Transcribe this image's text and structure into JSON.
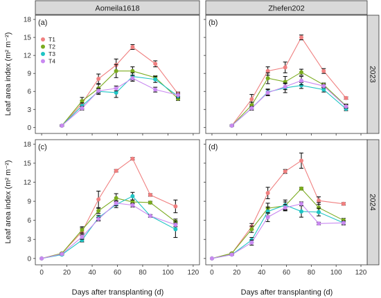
{
  "figure": {
    "x_label": "Days after transplanting (d)",
    "y_label": "Leaf area index (m² m⁻²)",
    "col_strips": [
      "Aomeila1618",
      "Zhefen202"
    ],
    "row_strips": [
      "2023",
      "2024"
    ]
  },
  "chart_data": {
    "type": "line",
    "xlim": [
      -5,
      125
    ],
    "ylim": [
      -1,
      18.7
    ],
    "x_ticks": [
      0,
      20,
      40,
      60,
      80,
      100,
      120
    ],
    "y_ticks": [
      0,
      3,
      6,
      9,
      12,
      15,
      18
    ],
    "legend": {
      "position": "top-left",
      "entries": [
        {
          "name": "T1",
          "color": "#f08080"
        },
        {
          "name": "T2",
          "color": "#7aab1e"
        },
        {
          "name": "T3",
          "color": "#1fc4c4"
        },
        {
          "name": "T4",
          "color": "#c989f0"
        }
      ]
    },
    "panels": [
      {
        "label": "(a)",
        "variety": "Aomeila1618",
        "year": "2023",
        "x": [
          16,
          32,
          45,
          59,
          72,
          90,
          108
        ],
        "series": [
          {
            "name": "T1",
            "color": "#f08080",
            "y": [
              0.3,
              4.0,
              8.1,
              10.4,
              13.4,
              10.6,
              5.6
            ],
            "err": [
              0.1,
              0.5,
              0.8,
              1.0,
              0.4,
              0.5,
              0.3
            ]
          },
          {
            "name": "T2",
            "color": "#7aab1e",
            "y": [
              0.3,
              4.4,
              6.5,
              9.4,
              9.4,
              8.3,
              4.8
            ],
            "err": [
              0.1,
              0.6,
              0.7,
              1.1,
              0.7,
              0.3,
              0.3
            ]
          },
          {
            "name": "T3",
            "color": "#1fc4c4",
            "y": [
              0.3,
              3.6,
              6.0,
              5.8,
              8.5,
              8.0,
              5.2
            ],
            "err": [
              0.1,
              0.5,
              0.5,
              0.8,
              0.6,
              0.5,
              0.3
            ]
          },
          {
            "name": "T4",
            "color": "#c989f0",
            "y": [
              0.3,
              3.2,
              6.1,
              6.5,
              8.2,
              6.3,
              5.4
            ],
            "err": [
              0.1,
              0.3,
              0.4,
              0.4,
              0.5,
              0.4,
              0.3
            ]
          }
        ]
      },
      {
        "label": "(b)",
        "variety": "Zhefen202",
        "year": "2023",
        "x": [
          16,
          32,
          45,
          59,
          72,
          90,
          108
        ],
        "series": [
          {
            "name": "T1",
            "color": "#f08080",
            "y": [
              0.3,
              4.7,
              9.4,
              10.0,
              15.0,
              9.4,
              4.9
            ],
            "err": [
              0.1,
              0.8,
              0.7,
              0.9,
              0.4,
              0.4,
              0.2
            ]
          },
          {
            "name": "T2",
            "color": "#7aab1e",
            "y": [
              0.3,
              3.7,
              8.2,
              7.6,
              9.2,
              7.1,
              3.6
            ],
            "err": [
              0.1,
              0.5,
              0.9,
              0.9,
              0.5,
              0.3,
              0.3
            ]
          },
          {
            "name": "T3",
            "color": "#1fc4c4",
            "y": [
              0.3,
              3.2,
              5.9,
              6.6,
              7.0,
              6.3,
              3.1
            ],
            "err": [
              0.1,
              0.3,
              0.5,
              0.8,
              0.5,
              0.4,
              0.3
            ]
          },
          {
            "name": "T4",
            "color": "#c989f0",
            "y": [
              0.3,
              3.2,
              5.8,
              6.8,
              7.8,
              6.9,
              3.5
            ],
            "err": [
              0.1,
              0.3,
              0.5,
              0.5,
              0.7,
              0.3,
              0.3
            ]
          }
        ]
      },
      {
        "label": "(c)",
        "variety": "Aomeila1618",
        "year": "2024",
        "x": [
          0,
          16,
          32,
          45,
          59,
          72,
          86,
          106
        ],
        "series": [
          {
            "name": "T1",
            "color": "#f08080",
            "y": [
              0.0,
              0.8,
              4.2,
              9.3,
              13.8,
              15.7,
              10.0,
              8.2
            ],
            "err": [
              0.05,
              0.1,
              0.6,
              1.3,
              0.2,
              0.2,
              0.2,
              1.0
            ]
          },
          {
            "name": "T2",
            "color": "#7aab1e",
            "y": [
              0.0,
              0.8,
              4.5,
              7.5,
              9.5,
              8.9,
              8.8,
              5.8
            ],
            "err": [
              0.05,
              0.1,
              0.5,
              0.4,
              0.7,
              0.3,
              0.2,
              0.4
            ]
          },
          {
            "name": "T3",
            "color": "#1fc4c4",
            "y": [
              0.0,
              0.6,
              2.9,
              6.4,
              8.5,
              9.8,
              6.7,
              4.6
            ],
            "err": [
              0.05,
              0.1,
              0.3,
              0.4,
              0.5,
              0.6,
              0.2,
              1.3
            ]
          },
          {
            "name": "T4",
            "color": "#c989f0",
            "y": [
              0.0,
              0.7,
              3.4,
              6.2,
              8.7,
              8.4,
              6.7,
              5.3
            ],
            "err": [
              0.05,
              0.1,
              0.4,
              0.3,
              0.4,
              0.3,
              0.2,
              0.3
            ]
          }
        ]
      },
      {
        "label": "(d)",
        "variety": "Zhefen202",
        "year": "2024",
        "x": [
          0,
          16,
          32,
          45,
          59,
          72,
          86,
          106
        ],
        "series": [
          {
            "name": "T1",
            "color": "#f08080",
            "y": [
              0.0,
              0.8,
              5.0,
              10.3,
              13.7,
              15.4,
              9.1,
              8.6
            ],
            "err": [
              0.05,
              0.1,
              0.5,
              0.9,
              0.3,
              1.2,
              0.6,
              0.2
            ]
          },
          {
            "name": "T2",
            "color": "#7aab1e",
            "y": [
              0.0,
              0.8,
              4.6,
              7.9,
              8.3,
              11.0,
              8.0,
              6.0
            ],
            "err": [
              0.05,
              0.1,
              0.5,
              0.8,
              0.6,
              0.2,
              0.8,
              0.3
            ]
          },
          {
            "name": "T3",
            "color": "#1fc4c4",
            "y": [
              0.0,
              0.6,
              2.9,
              7.4,
              8.4,
              7.4,
              7.3,
              5.6
            ],
            "err": [
              0.05,
              0.1,
              0.4,
              0.7,
              0.8,
              0.9,
              0.6,
              0.3
            ]
          },
          {
            "name": "T4",
            "color": "#c989f0",
            "y": [
              0.0,
              0.6,
              2.5,
              6.5,
              8.0,
              8.6,
              5.5,
              5.6
            ],
            "err": [
              0.05,
              0.1,
              0.4,
              0.7,
              0.5,
              0.3,
              0.2,
              0.3
            ]
          }
        ]
      }
    ]
  }
}
